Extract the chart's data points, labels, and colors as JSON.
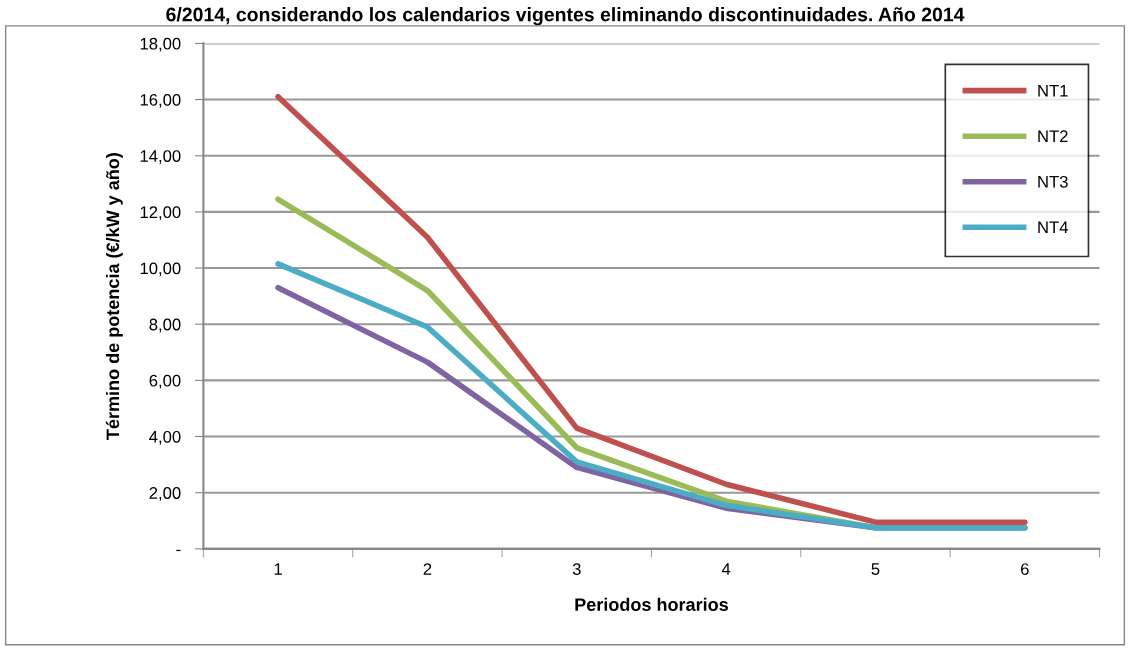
{
  "chart_data": {
    "type": "line",
    "title": "6/2014, considerando los calendarios vigentes eliminando discontinuidades. Año 2014",
    "xlabel": "Periodos horarios",
    "ylabel": "Término de potencia (€/kW y año)",
    "categories": [
      "1",
      "2",
      "3",
      "4",
      "5",
      "6"
    ],
    "series": [
      {
        "name": "NT1",
        "color": "#c0504d",
        "values": [
          16.1,
          11.1,
          4.3,
          2.3,
          0.95,
          0.95
        ]
      },
      {
        "name": "NT2",
        "color": "#9bbb59",
        "values": [
          12.45,
          9.2,
          3.6,
          1.7,
          0.75,
          0.75
        ]
      },
      {
        "name": "NT3",
        "color": "#8064a2",
        "values": [
          9.3,
          6.65,
          2.9,
          1.45,
          0.75,
          0.75
        ]
      },
      {
        "name": "NT4",
        "color": "#4bacc6",
        "values": [
          10.15,
          7.9,
          3.1,
          1.55,
          0.75,
          0.75
        ]
      }
    ],
    "ylim": [
      0,
      18
    ],
    "yticks": [
      {
        "value": 0,
        "label": "-"
      },
      {
        "value": 2,
        "label": "2,00"
      },
      {
        "value": 4,
        "label": "4,00"
      },
      {
        "value": 6,
        "label": "6,00"
      },
      {
        "value": 8,
        "label": "8,00"
      },
      {
        "value": 10,
        "label": "10,00"
      },
      {
        "value": 12,
        "label": "12,00"
      },
      {
        "value": 14,
        "label": "14,00"
      },
      {
        "value": 16,
        "label": "16,00"
      },
      {
        "value": 18,
        "label": "18,00"
      }
    ],
    "grid": "y",
    "legend": "top right",
    "marker": "none",
    "line_style": "solid"
  }
}
